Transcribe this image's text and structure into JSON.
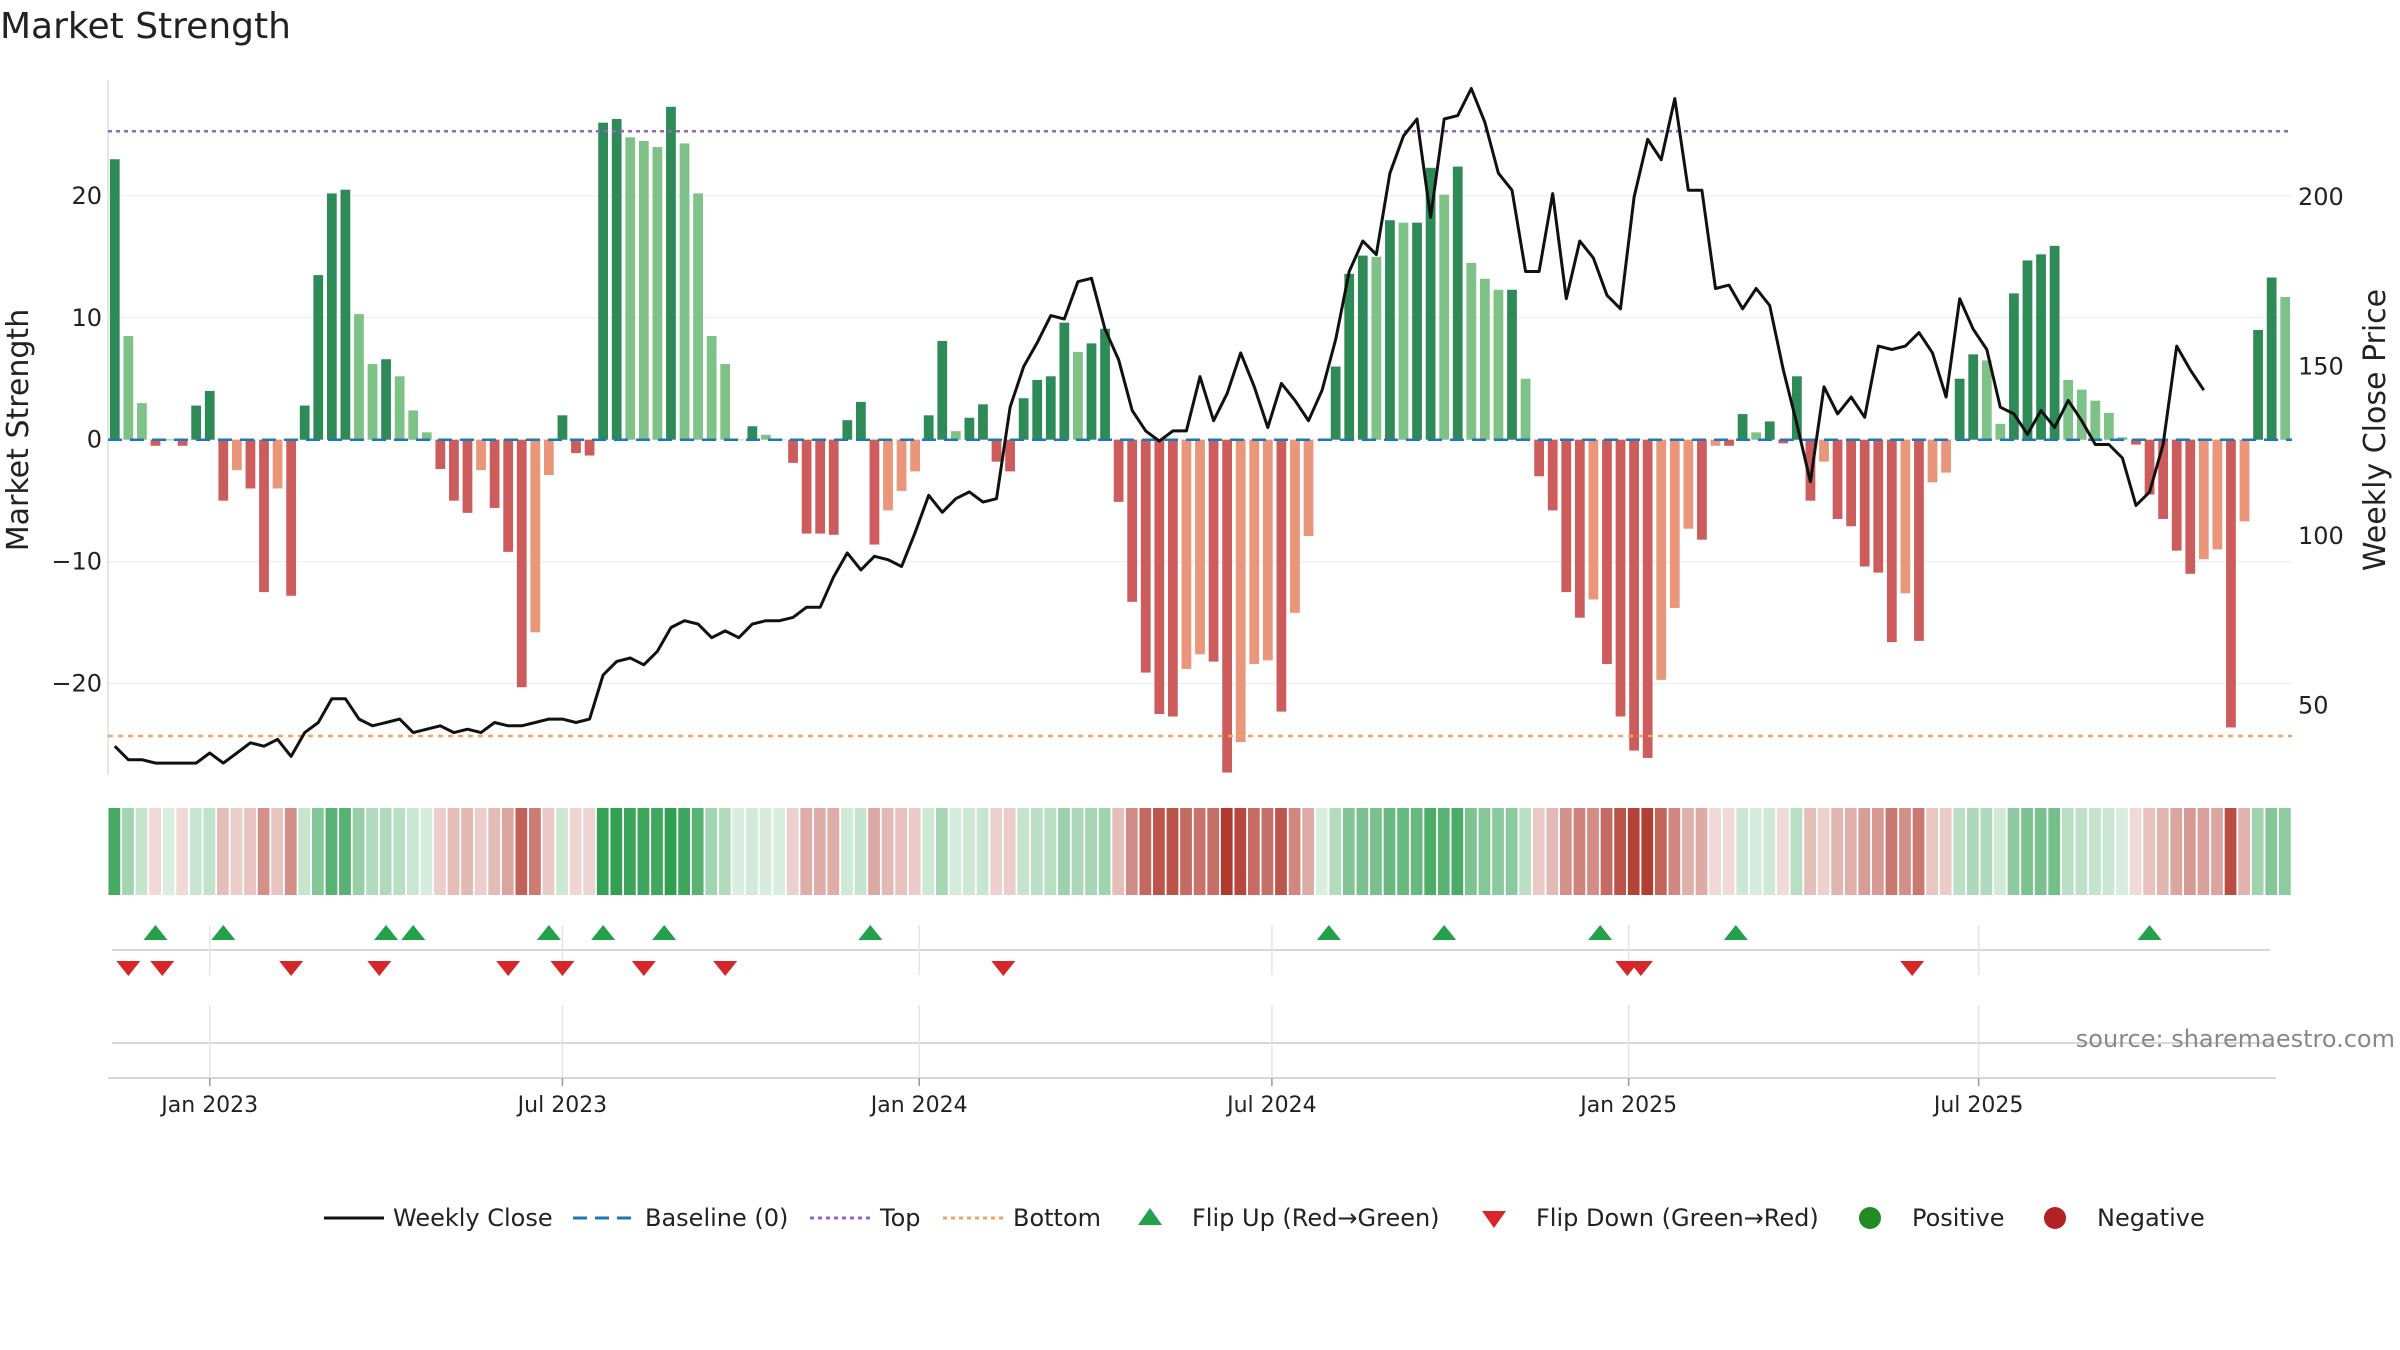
{
  "chart_data": {
    "type": "bar",
    "title": "Market Strength",
    "ylabel_left": "Market Strength",
    "ylabel_right": "Weekly Close Price",
    "y_left_ticks": [
      "20",
      "10",
      "0",
      "−10",
      "−20"
    ],
    "y_left_tick_values": [
      20,
      10,
      0,
      -10,
      -20
    ],
    "y_left_range": [
      -27.5,
      29.5
    ],
    "y_right_ticks": [
      "200",
      "150",
      "100",
      "50"
    ],
    "y_right_tick_values": [
      200,
      150,
      100,
      50
    ],
    "y_right_range": [
      29.5,
      234.5
    ],
    "top_line": 25.3,
    "bottom_line": -24.3,
    "x_start_week": -7,
    "weeks": 165,
    "x_ticks": [
      {
        "label": "Jan 2023",
        "week": 0
      },
      {
        "label": "Jul 2023",
        "week": 26
      },
      {
        "label": "Jan 2024",
        "week": 52.3
      },
      {
        "label": "Jul 2024",
        "week": 78.3
      },
      {
        "label": "Jan 2025",
        "week": 104.6
      },
      {
        "label": "Jul 2025",
        "week": 130.4
      }
    ],
    "strength": [
      23,
      8.5,
      3,
      -0.5,
      0,
      -0.5,
      2.8,
      4,
      -5,
      -2.5,
      -4,
      -12.5,
      -4,
      -12.8,
      2.8,
      13.5,
      20.2,
      20.5,
      10.3,
      6.2,
      6.6,
      5.2,
      2.4,
      0.6,
      -2.4,
      -5,
      -6,
      -2.5,
      -5.6,
      -9.2,
      -20.3,
      -15.8,
      -2.9,
      2,
      -1.1,
      -1.3,
      26,
      26.3,
      24.8,
      24.5,
      24,
      27.3,
      24.3,
      20.2,
      8.5,
      6.2,
      0,
      1.1,
      0.4,
      0,
      -1.9,
      -7.7,
      -7.7,
      -7.8,
      1.6,
      3.1,
      -8.6,
      -5.8,
      -4.2,
      -2.6,
      2,
      8.1,
      0.7,
      1.8,
      2.9,
      -1.8,
      -2.6,
      3.4,
      4.9,
      5.2,
      9.6,
      7.2,
      7.9,
      9.1,
      -5.1,
      -13.3,
      -19.1,
      -22.5,
      -22.7,
      -18.8,
      -17.6,
      -18.2,
      -27.3,
      -24.8,
      -18.4,
      -18.1,
      -22.3,
      -14.2,
      -7.9,
      0,
      6,
      13.6,
      15.1,
      15,
      18,
      17.8,
      17.8,
      22.3,
      20.1,
      22.4,
      14.5,
      13.2,
      12.3,
      12.3,
      5,
      -3,
      -5.8,
      -12.5,
      -14.6,
      -13.1,
      -18.4,
      -22.7,
      -25.5,
      -26.1,
      -19.7,
      -13.8,
      -7.3,
      -8.2,
      -0.5,
      -0.5,
      2.1,
      0.6,
      1.5,
      -0.3,
      5.2,
      -5,
      -1.8,
      -6.5,
      -7.1,
      -10.4,
      -10.9,
      -16.6,
      -12.6,
      -16.5,
      -3.5,
      -2.7,
      5,
      7,
      6.5,
      1.3,
      12,
      14.7,
      15.2,
      15.9,
      4.9,
      4.1,
      3.2,
      2.2,
      0.2,
      -0.4,
      -4.5,
      -6.5,
      -9.1,
      -11,
      -9.8,
      -9,
      -23.6,
      -6.7,
      9,
      13.3,
      11.7
    ],
    "close": [
      38,
      34,
      34,
      33,
      33,
      33,
      33,
      36,
      33,
      36,
      39,
      38,
      40,
      35,
      42,
      45,
      52,
      52,
      46,
      44,
      45,
      46,
      42,
      43,
      44,
      42,
      43,
      42,
      45,
      44,
      44,
      45,
      46,
      46,
      45,
      46,
      59,
      63,
      64,
      62,
      66,
      73,
      75,
      74,
      70,
      72,
      70,
      74,
      75,
      75,
      76,
      79,
      79,
      88,
      95,
      90,
      94,
      93,
      91,
      101,
      112,
      107,
      111,
      113,
      110,
      111,
      138,
      150,
      157,
      165,
      164,
      175,
      176,
      161,
      152,
      137,
      131,
      128,
      131,
      131,
      147,
      134,
      142,
      154,
      144,
      132,
      145,
      140,
      134,
      143,
      158,
      178,
      187,
      183,
      207,
      218,
      223,
      194,
      223,
      224,
      232,
      222,
      207,
      202,
      178,
      178,
      201,
      170,
      187,
      182,
      171,
      167,
      200,
      217,
      211,
      229,
      202,
      202,
      173,
      174,
      167,
      173,
      168,
      149,
      133,
      116,
      144,
      136,
      141,
      135,
      156,
      155,
      156,
      160,
      154,
      141,
      170,
      161,
      155,
      138,
      136,
      130,
      137,
      132,
      140,
      134,
      127,
      127,
      123,
      109,
      113,
      127,
      156,
      149,
      143
    ],
    "bar_colors": {
      "strong_green": "#2e8b57",
      "light_green": "#7ec287",
      "strong_red": "#cd5c5c",
      "light_red": "#e9967a"
    },
    "heat_colors": {
      "green": "#2e9e4f",
      "red": "#b03a2e"
    },
    "line_color": "#111111",
    "top_color": "#9467bd",
    "bottom_color": "#f4a460",
    "baseline_color": "#1f77b4",
    "flip_up_weeks": [
      -4,
      1,
      13,
      15,
      25,
      29,
      33.5,
      48.7,
      82.5,
      91,
      102.5,
      112.5,
      143
    ],
    "flip_down_weeks": [
      -6,
      -3.5,
      6,
      12.5,
      22,
      26,
      32,
      38,
      58.5,
      104.5,
      105.5,
      125.5
    ],
    "flip_up_color": "#22a04a",
    "flip_down_color": "#d62728",
    "positive_color": "#228b22",
    "negative_color": "#b22222",
    "legend": [
      "Weekly Close",
      "Baseline (0)",
      "Top",
      "Bottom",
      "Flip Up (Red→Green)",
      "Flip Down (Green→Red)",
      "Positive",
      "Negative"
    ],
    "source": "source: sharemaestro.com"
  }
}
